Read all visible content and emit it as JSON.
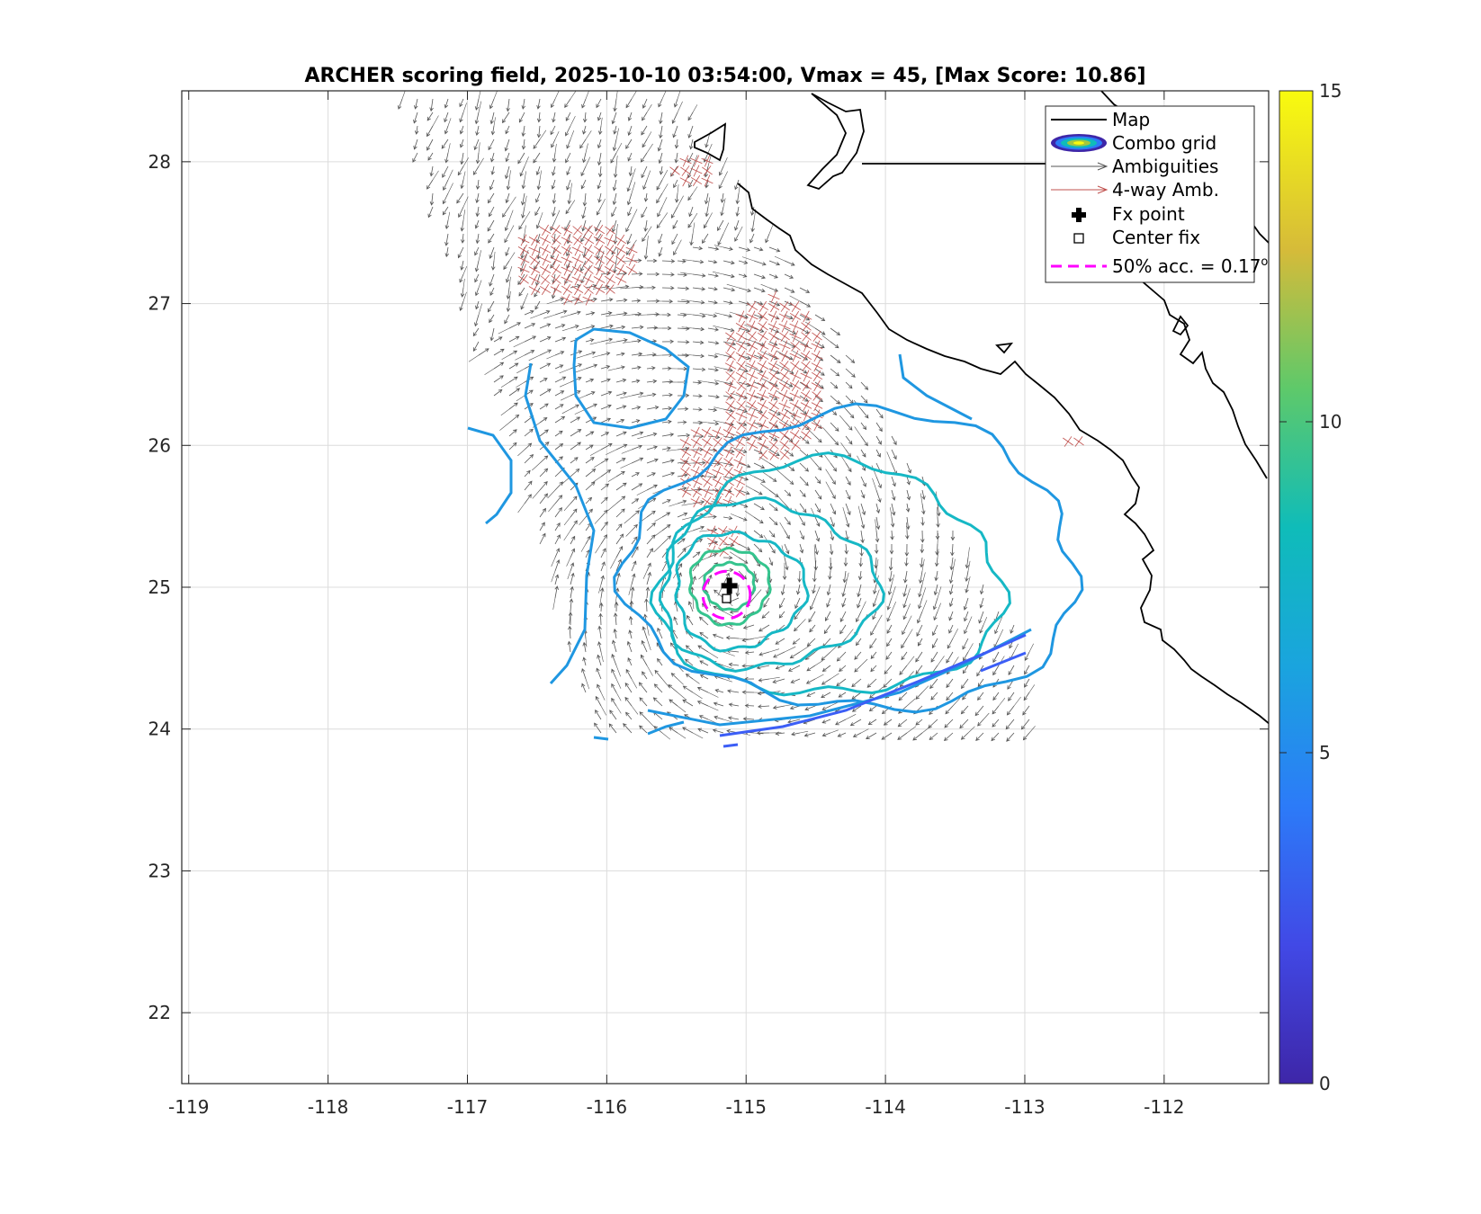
{
  "chart_data": {
    "type": "contour",
    "title": "ARCHER scoring field, 2025-10-10 03:54:00, Vmax = 45, [Max Score: 10.86]",
    "xlabel": "",
    "ylabel": "",
    "xlim": [
      -119.05,
      -111.25
    ],
    "ylim": [
      21.5,
      28.5
    ],
    "xticks": [
      -119,
      -118,
      -117,
      -116,
      -115,
      -114,
      -113,
      -112
    ],
    "yticks": [
      22,
      23,
      24,
      25,
      26,
      27,
      28
    ],
    "grid": true,
    "colorbar": {
      "range": [
        0,
        15
      ],
      "ticks": [
        0,
        5,
        10,
        15
      ],
      "colors": [
        "#3e26a8",
        "#3c5ef6",
        "#1f97e1",
        "#16b8c5",
        "#35c48e",
        "#99c13e",
        "#e8b72f",
        "#f9fb0e"
      ]
    },
    "fx_point": {
      "lon": -115.12,
      "lat": 25.01
    },
    "center_fix": {
      "lon": -115.14,
      "lat": 24.92
    },
    "accuracy_radius_deg": 0.17,
    "max_score": 10.86,
    "legend": {
      "position": "top-right",
      "entries": [
        "Map",
        "Combo grid",
        "Ambiguities",
        "4-way Amb.",
        "Fx point",
        "Center fix",
        "50% acc. = 0.17"
      ]
    },
    "colors": {
      "map": "#000000",
      "ambiguities": "#555555",
      "four_way": "#c0504d",
      "accuracy_circle": "#ff00ff",
      "grid": "#dcdcdc"
    }
  }
}
